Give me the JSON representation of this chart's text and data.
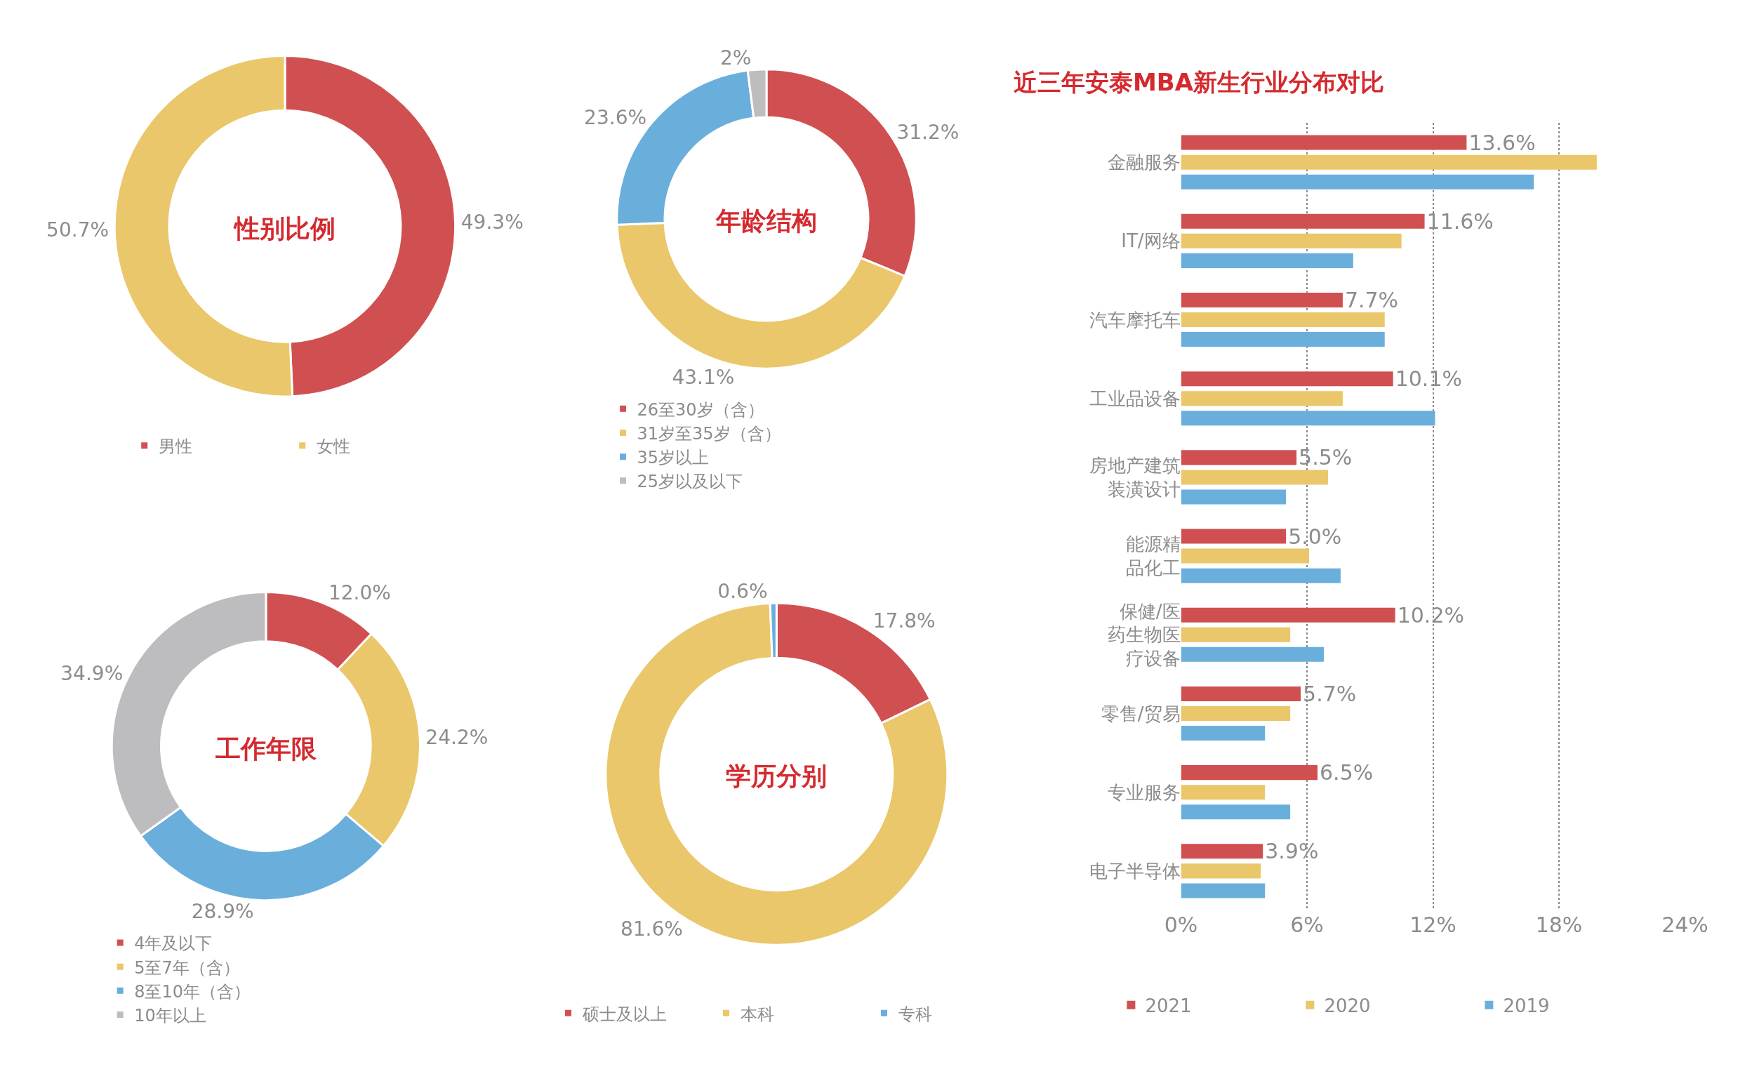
{
  "chart_data": [
    {
      "type": "donut",
      "title": "性别比例",
      "categories": [
        "男性",
        "女性"
      ],
      "values": [
        49.3,
        50.7
      ],
      "colors": [
        "#d05052",
        "#e9c76a"
      ],
      "value_labels": [
        "49.3%",
        "50.7%"
      ],
      "legend": "bottom"
    },
    {
      "type": "donut",
      "title": "年龄结构",
      "categories": [
        "26至30岁（含）",
        "31岁至35岁（含）",
        "35岁以上",
        "25岁以及以下"
      ],
      "values": [
        31.2,
        43.1,
        23.6,
        2
      ],
      "colors": [
        "#d05052",
        "#e9c76a",
        "#6aafdc",
        "#bdbdbf"
      ],
      "value_labels": [
        "31.2%",
        "43.1%",
        "23.6%",
        "2%"
      ],
      "legend": "bottom"
    },
    {
      "type": "donut",
      "title": "工作年限",
      "categories": [
        "4年及以下",
        "5至7年（含）",
        "8至10年（含）",
        "10年以上"
      ],
      "values": [
        12.0,
        24.2,
        28.9,
        34.9
      ],
      "colors": [
        "#d05052",
        "#e9c76a",
        "#6aafdc",
        "#bdbdbf"
      ],
      "value_labels": [
        "12.0%",
        "24.2%",
        "28.9%",
        "34.9%"
      ],
      "legend": "bottom"
    },
    {
      "type": "donut",
      "title": "学历分别",
      "categories": [
        "硕士及以上",
        "本科",
        "专科"
      ],
      "values": [
        17.8,
        81.6,
        0.6
      ],
      "colors": [
        "#d05052",
        "#e9c76a",
        "#6aafdc"
      ],
      "value_labels": [
        "17.8%",
        "81.6%",
        "0.6%"
      ],
      "legend": "bottom"
    },
    {
      "type": "bar",
      "orientation": "horizontal",
      "title": "近三年安泰MBA新生行业分布对比",
      "categories": [
        "金融服务",
        "IT/网络",
        "汽车摩托车",
        "工业品设备",
        "房地产建筑装潢设计",
        "能源精品化工",
        "保健/医药生物医疗设备",
        "零售/贸易",
        "专业服务",
        "电子半导体"
      ],
      "series": [
        {
          "name": "2021",
          "color": "#d05052",
          "values": [
            13.6,
            11.6,
            7.7,
            10.1,
            5.5,
            5.0,
            10.2,
            5.7,
            6.5,
            3.9
          ],
          "value_labels": [
            "13.6%",
            "11.6%",
            "7.7%",
            "10.1%",
            "5.5%",
            "5.0%",
            "10.2%",
            "5.7%",
            "6.5%",
            "3.9%"
          ]
        },
        {
          "name": "2020",
          "color": "#e9c76a",
          "values": [
            19.8,
            10.5,
            9.7,
            7.7,
            7.0,
            6.1,
            5.2,
            5.2,
            4.0,
            3.8
          ]
        },
        {
          "name": "2019",
          "color": "#6aafdc",
          "values": [
            16.8,
            8.2,
            9.7,
            12.1,
            5.0,
            7.6,
            6.8,
            4.0,
            5.2,
            4.0
          ]
        }
      ],
      "xlim": [
        0,
        24
      ],
      "xticks": [
        {
          "value": 0,
          "label": "0%"
        },
        {
          "value": 6,
          "label": "6%"
        },
        {
          "value": 12,
          "label": "12%"
        },
        {
          "value": 18,
          "label": "18%"
        },
        {
          "value": 24,
          "label": "24%"
        }
      ],
      "grid": "x",
      "legend": "bottom"
    }
  ]
}
